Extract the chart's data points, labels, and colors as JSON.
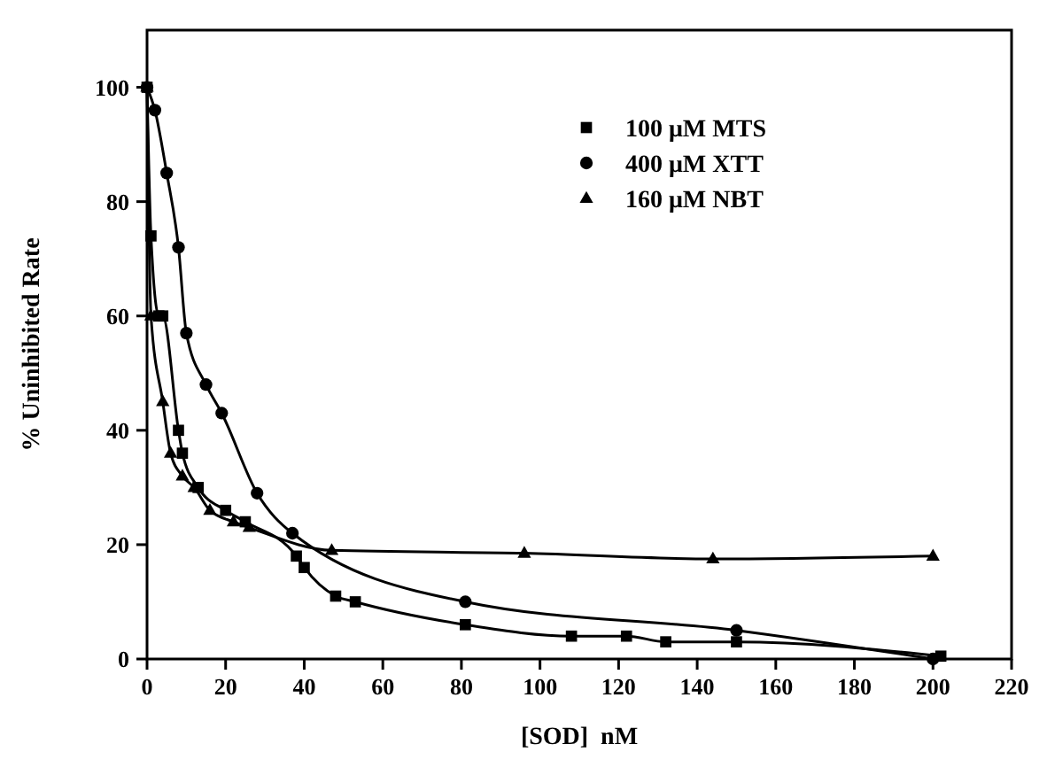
{
  "chart_data": {
    "type": "line",
    "xlabel": "[SOD]  nM",
    "ylabel": "% Uninhibited Rate",
    "xlim": [
      0,
      220
    ],
    "xticks": [
      0,
      20,
      40,
      60,
      80,
      100,
      120,
      140,
      160,
      180,
      200,
      220
    ],
    "ylim": [
      0,
      110
    ],
    "yticks": [
      0,
      20,
      40,
      60,
      80,
      100
    ],
    "legend": "top right",
    "grid": false,
    "line_style": "solid",
    "series": [
      {
        "name": "100 μM MTS",
        "color": "#000000",
        "marker": "square",
        "x": [
          0,
          1,
          3,
          4,
          8,
          9,
          13,
          20,
          25,
          38,
          40,
          48,
          53,
          81,
          108,
          122,
          132,
          150,
          202
        ],
        "values": [
          100,
          74,
          60,
          60,
          40,
          36,
          30,
          26,
          24,
          18,
          16,
          11,
          10,
          6,
          4,
          4,
          3,
          3,
          0.5
        ]
      },
      {
        "name": "400 μM XTT",
        "color": "#000000",
        "marker": "circle",
        "x": [
          0,
          2,
          5,
          8,
          10,
          15,
          19,
          28,
          37,
          81,
          150,
          200
        ],
        "values": [
          100,
          96,
          85,
          72,
          57,
          48,
          43,
          29,
          22,
          10,
          5,
          0
        ]
      },
      {
        "name": "160 μM NBT",
        "color": "#000000",
        "marker": "triangle",
        "x": [
          0,
          1,
          4,
          6,
          9,
          12,
          16,
          22,
          26,
          47,
          96,
          144,
          200
        ],
        "values": [
          100,
          60,
          45,
          36,
          32,
          30,
          26,
          24,
          23,
          19,
          18.5,
          17.5,
          18
        ]
      }
    ]
  }
}
